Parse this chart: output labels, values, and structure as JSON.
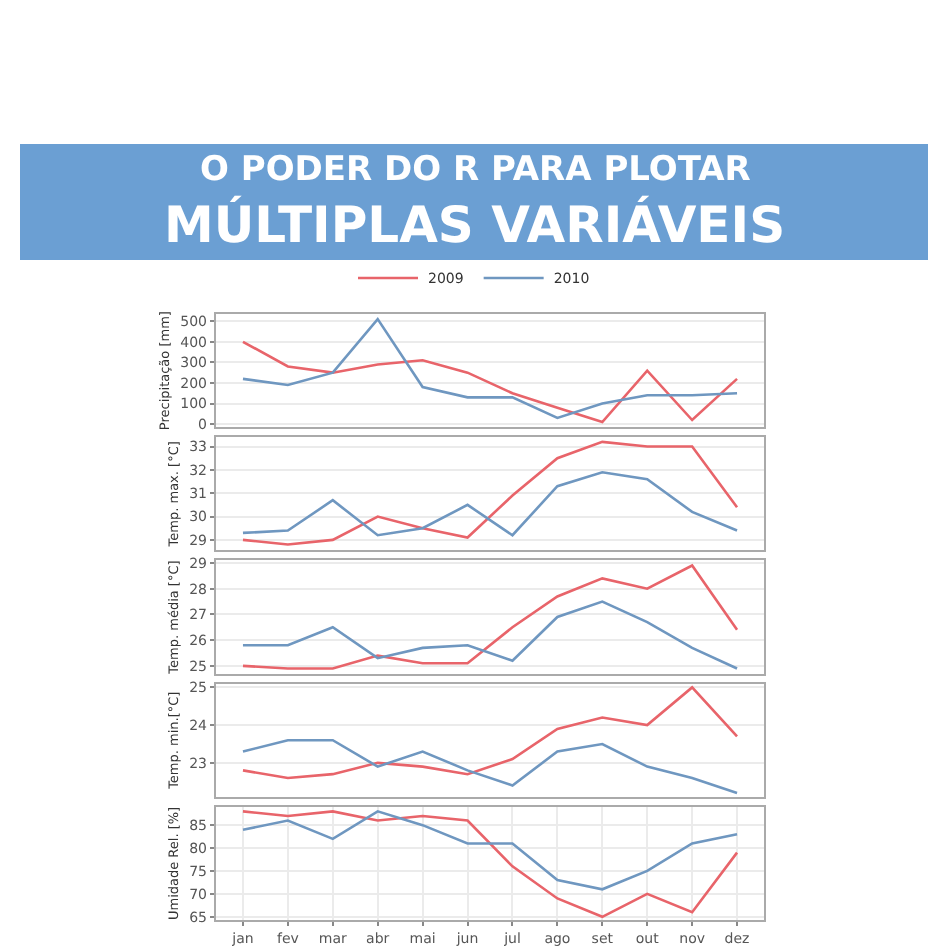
{
  "chart_data": [
    {
      "type": "line",
      "title": "O PODER DO R PARA PLOTAR",
      "subtitle": "MÚLTIPLAS VARIÁVEIS",
      "legend": "top",
      "grid": true,
      "tick_labels": "y",
      "ylabel": "Precipitação [mm]",
      "ylim": [
        -15,
        535
      ],
      "yticks": [
        0,
        100,
        200,
        300,
        400,
        500
      ],
      "series": [
        {
          "name": "2009",
          "color": "#e8646a",
          "values": [
            400,
            280,
            250,
            290,
            310,
            250,
            150,
            80,
            10,
            260,
            20,
            220
          ]
        },
        {
          "name": "2010",
          "color": "#6f97c0",
          "values": [
            220,
            190,
            250,
            510,
            180,
            130,
            130,
            30,
            100,
            140,
            140,
            150
          ]
        }
      ]
    },
    {
      "type": "line",
      "grid": true,
      "tick_labels": "y",
      "ylabel": "Temp. max. [°C]",
      "ylim": [
        28.55,
        33.4
      ],
      "yticks": [
        29,
        30,
        31,
        32,
        33
      ],
      "series": [
        {
          "name": "2009",
          "color": "#e8646a",
          "values": [
            29.0,
            28.8,
            29.0,
            30.0,
            29.5,
            29.1,
            30.9,
            32.5,
            33.2,
            33.0,
            33.0,
            30.4
          ]
        },
        {
          "name": "2010",
          "color": "#6f97c0",
          "values": [
            29.3,
            29.4,
            30.7,
            29.2,
            29.5,
            30.5,
            29.2,
            31.3,
            31.9,
            31.6,
            30.2,
            29.4
          ]
        }
      ]
    },
    {
      "type": "line",
      "grid": true,
      "tick_labels": "y",
      "ylabel": "Temp. média [°C]",
      "ylim": [
        24.7,
        29.1
      ],
      "yticks": [
        25,
        26,
        27,
        28,
        29
      ],
      "series": [
        {
          "name": "2009",
          "color": "#e8646a",
          "values": [
            25.0,
            24.9,
            24.9,
            25.4,
            25.1,
            25.1,
            26.5,
            27.7,
            28.4,
            28.0,
            28.9,
            26.4
          ]
        },
        {
          "name": "2010",
          "color": "#6f97c0",
          "values": [
            25.8,
            25.8,
            26.5,
            25.3,
            25.7,
            25.8,
            25.2,
            26.9,
            27.5,
            26.7,
            25.7,
            24.9
          ]
        }
      ]
    },
    {
      "type": "line",
      "grid": true,
      "tick_labels": "y",
      "ylabel": "Temp. min.[°C]",
      "ylim": [
        22.1,
        25.1
      ],
      "yticks": [
        23,
        24,
        25
      ],
      "series": [
        {
          "name": "2009",
          "color": "#e8646a",
          "values": [
            22.8,
            22.6,
            22.7,
            23.0,
            22.9,
            22.7,
            23.1,
            23.9,
            24.2,
            24.0,
            25.0,
            23.7
          ]
        },
        {
          "name": "2010",
          "color": "#6f97c0",
          "values": [
            23.3,
            23.6,
            23.6,
            22.9,
            23.3,
            22.8,
            22.4,
            23.3,
            23.5,
            22.9,
            22.6,
            22.2
          ]
        }
      ]
    },
    {
      "type": "line",
      "grid": true,
      "ylabel": "Umidade Rel. [%]",
      "categories": [
        "jan",
        "fev",
        "mar",
        "abr",
        "mai",
        "jun",
        "jul",
        "ago",
        "set",
        "out",
        "nov",
        "dez"
      ],
      "ylim": [
        64.3,
        89
      ],
      "yticks": [
        65,
        70,
        75,
        80,
        85
      ],
      "series": [
        {
          "name": "2009",
          "color": "#e8646a",
          "values": [
            88,
            87,
            88,
            86,
            87,
            86,
            76,
            69,
            65,
            70,
            66,
            79
          ]
        },
        {
          "name": "2010",
          "color": "#6f97c0",
          "values": [
            84,
            86,
            82,
            88,
            85,
            81,
            81,
            73,
            71,
            75,
            81,
            83
          ]
        }
      ]
    }
  ]
}
